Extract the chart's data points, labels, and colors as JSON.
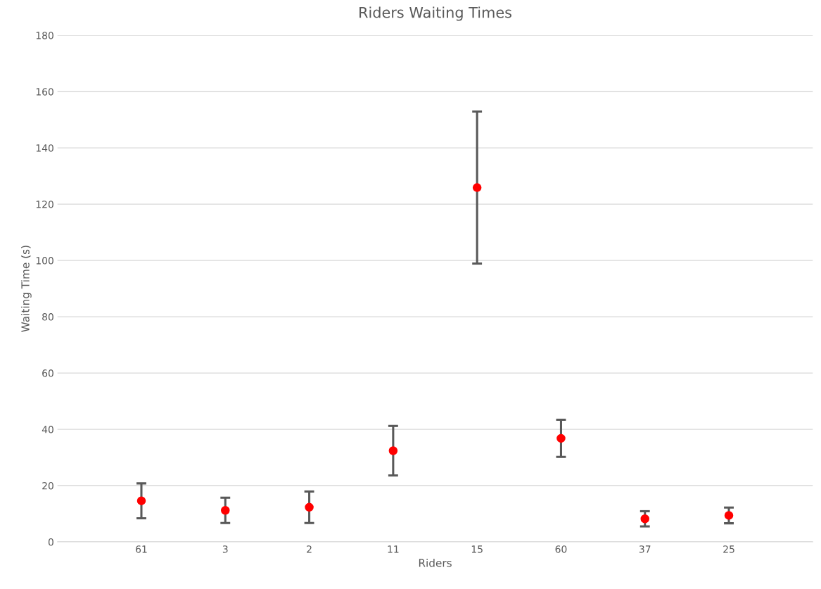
{
  "chart_data": {
    "type": "scatter",
    "title": "Riders Waiting Times",
    "xlabel": "Riders",
    "ylabel": "Waiting Time (s)",
    "categories": [
      "61",
      "3",
      "2",
      "11",
      "15",
      "60",
      "37",
      "25"
    ],
    "values": [
      14.6,
      11.2,
      12.3,
      32.4,
      125.9,
      36.8,
      8.2,
      9.4
    ],
    "errors": [
      6.2,
      4.5,
      5.6,
      8.8,
      27,
      6.6,
      2.7,
      2.8
    ],
    "color": "#ff0000",
    "marker": "circle",
    "ylim": [
      0,
      180
    ],
    "yticks": [
      0,
      20,
      40,
      60,
      80,
      100,
      120,
      140,
      160,
      180
    ],
    "grid": "y",
    "legend": false
  }
}
